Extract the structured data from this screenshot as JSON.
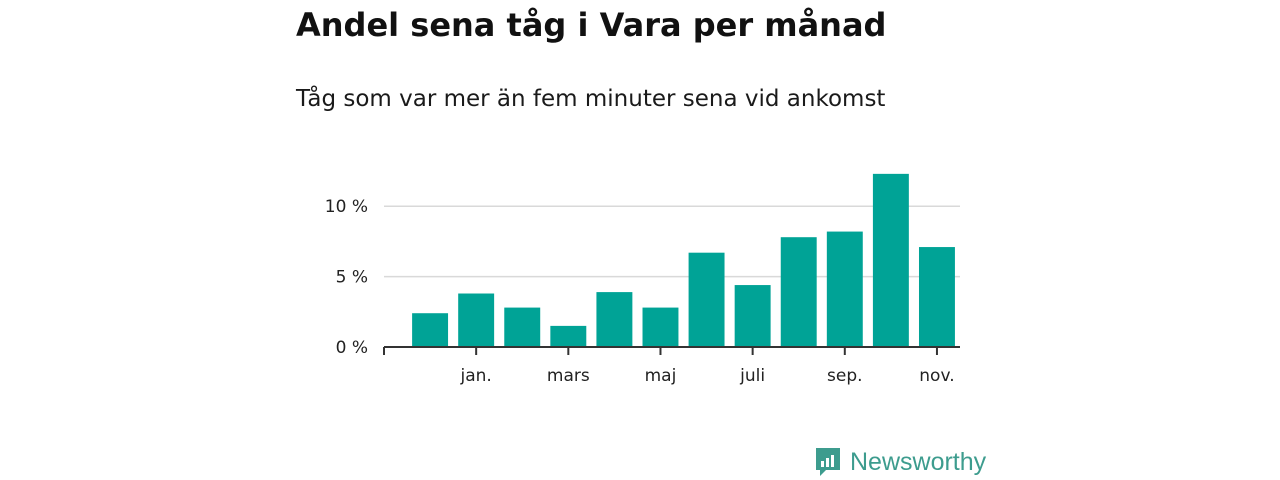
{
  "header": {
    "title": "Andel sena tåg i Vara per månad",
    "subtitle": "Tåg som var mer än fem minuter sena vid ankomst"
  },
  "brand": {
    "name": "Newsworthy",
    "icon": "newsworthy-logo-icon",
    "color": "#3d9c8e"
  },
  "chart_data": {
    "type": "bar",
    "x_tick_labels": [
      "jan.",
      "mars",
      "maj",
      "juli",
      "sep.",
      "nov."
    ],
    "values": [
      2.4,
      3.8,
      2.8,
      1.5,
      3.9,
      2.8,
      6.7,
      4.4,
      7.8,
      8.2,
      12.3,
      7.1
    ],
    "y_ticks": [
      0,
      5,
      10
    ],
    "y_tick_labels": [
      "0 %",
      "5 %",
      "10 %"
    ],
    "ylim": [
      0,
      13
    ],
    "grid": true,
    "legend": "none",
    "bar_color": "#00a396"
  }
}
